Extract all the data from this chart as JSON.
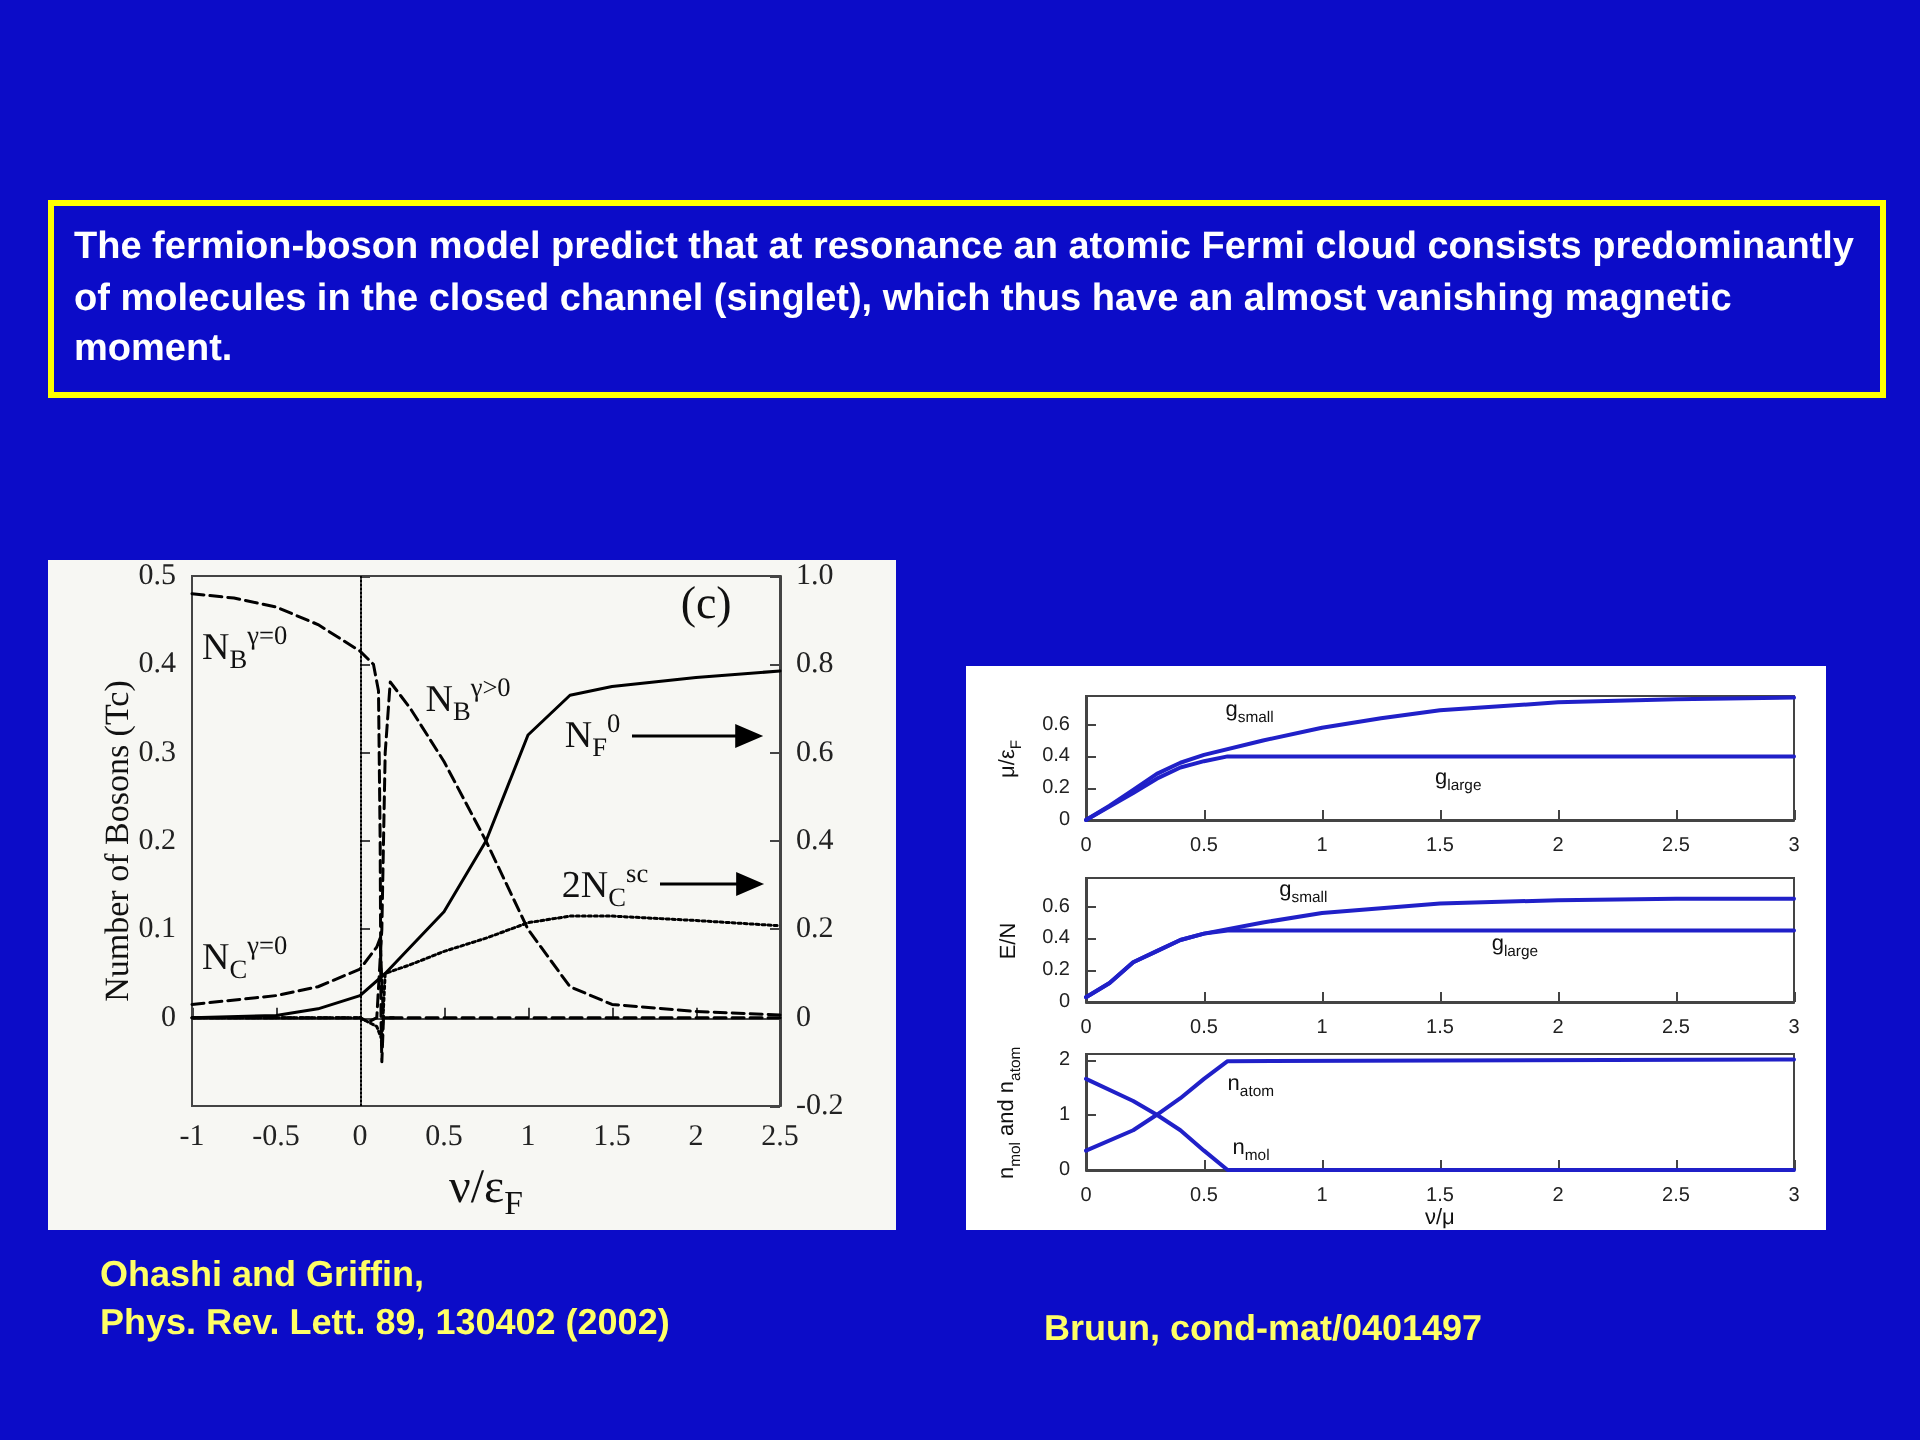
{
  "chart_data": [
    {
      "type": "other",
      "title": "The fermion-boson model predict that at resonance an atomic Fermi cloud consists predominantly of molecules in the closed channel (singlet), which thus have an almost vanishing magnetic moment."
    },
    {
      "type": "line",
      "legend": "right",
      "xlabel": "ν/ε$_{F}$",
      "ylabel": "Number of Bosons (Tc)",
      "xlim": [
        -1,
        2.5
      ],
      "xticks": [
        -1,
        -0.5,
        0,
        0.5,
        1,
        1.5,
        2,
        2.5
      ],
      "ylim": [
        -0.1,
        0.5
      ],
      "yticks": [
        0,
        0.1,
        0.2,
        0.3,
        0.4,
        0.5
      ],
      "y2lim": [
        -0.2,
        1
      ],
      "y2ticks": [
        -0.2,
        0,
        0.2,
        0.4,
        0.6,
        0.8,
        {
          "value": 1,
          "label": "1.0"
        }
      ],
      "ref_lines": [
        {
          "axis": "x",
          "value": 0,
          "color": "#000000",
          "line_style": "dotted"
        }
      ],
      "series": [
        {
          "name": "N$_{B}$$^{γ=0}$",
          "color": "#000000",
          "line_style": "dashed",
          "x": [
            -1,
            -0.75,
            -0.5,
            -0.25,
            0,
            0.08,
            0.11,
            0.12,
            0.125,
            0.13,
            0.14,
            0.2,
            1,
            2.5
          ],
          "values": [
            0.48,
            0.475,
            0.465,
            0.445,
            0.415,
            0.4,
            0.37,
            0.2,
            0,
            -0.05,
            0,
            0,
            0,
            0
          ]
        },
        {
          "name": "N$_{C}$$^{γ=0}$",
          "color": "#000000",
          "line_style": "dashed",
          "x": [
            -1,
            -0.5,
            -0.25,
            0,
            0.1,
            0.12,
            0.13,
            0.14,
            0.2
          ],
          "values": [
            0.015,
            0.025,
            0.035,
            0.055,
            0.08,
            0.09,
            0.04,
            0,
            0
          ]
        },
        {
          "name": "N$_{B}$$^{γ>0}$",
          "color": "#000000",
          "line_style": "dashed",
          "x": [
            -1,
            0,
            0.05,
            0.1,
            0.13,
            0.15,
            0.18,
            0.3,
            0.5,
            0.75,
            1,
            1.25,
            1.5,
            2,
            2.5
          ],
          "values": [
            0,
            0,
            -0.005,
            0,
            0.1,
            0.3,
            0.38,
            0.35,
            0.29,
            0.2,
            0.1,
            0.035,
            0.015,
            0.007,
            0.003
          ]
        },
        {
          "name": "N$_{F}$$^{0}$",
          "color": "#000000",
          "line_style": "solid",
          "axis": "y2",
          "x": [
            -1,
            -0.5,
            -0.25,
            0,
            0.15,
            0.3,
            0.5,
            0.75,
            1,
            1.25,
            1.5,
            2,
            2.5
          ],
          "values": [
            0,
            0.005,
            0.02,
            0.05,
            0.1,
            0.16,
            0.24,
            0.4,
            0.64,
            0.73,
            0.75,
            0.77,
            0.785
          ]
        },
        {
          "name": "2N$_{C}$$^{sc}$",
          "color": "#000000",
          "line_style": "dotted",
          "axis": "y2",
          "x": [
            -1,
            0,
            0.05,
            0.1,
            0.13,
            0.15,
            0.3,
            0.5,
            0.75,
            1,
            1.25,
            1.5,
            2,
            2.5
          ],
          "values": [
            0,
            0,
            -0.01,
            -0.02,
            -0.05,
            0.1,
            0.12,
            0.15,
            0.18,
            0.215,
            0.23,
            0.23,
            0.22,
            0.208
          ]
        }
      ],
      "annotations": [
        "(c)",
        "Ohashi and Griffin,\nPhys. Rev. Lett. 89, 130402 (2002)"
      ]
    },
    {
      "type": "line",
      "ylabel": "μ/ε$_{F}$",
      "xlim": [
        0,
        3
      ],
      "xticks": [
        0,
        0.5,
        1,
        1.5,
        2,
        2.5,
        3
      ],
      "ylim": [
        0,
        0.78
      ],
      "yticks": [
        0,
        0.2,
        0.4,
        0.6
      ],
      "series": [
        {
          "name": "g$_{small}$",
          "color": "#2020c8",
          "x": [
            0,
            0.1,
            0.2,
            0.3,
            0.4,
            0.5,
            0.75,
            1,
            1.25,
            1.5,
            2,
            2.5,
            3
          ],
          "values": [
            0,
            0.09,
            0.19,
            0.29,
            0.36,
            0.41,
            0.5,
            0.58,
            0.64,
            0.69,
            0.74,
            0.76,
            0.77
          ]
        },
        {
          "name": "g$_{large}$",
          "color": "#2020c8",
          "x": [
            0,
            0.2,
            0.3,
            0.4,
            0.5,
            0.6,
            3
          ],
          "values": [
            0,
            0.17,
            0.26,
            0.33,
            0.37,
            0.4,
            0.4
          ]
        }
      ]
    },
    {
      "type": "line",
      "ylabel": "E/N",
      "xlim": [
        0,
        3
      ],
      "xticks": [
        0,
        0.5,
        1,
        1.5,
        2,
        2.5,
        3
      ],
      "ylim": [
        0,
        0.78
      ],
      "yticks": [
        0,
        0.2,
        0.4,
        0.6
      ],
      "series": [
        {
          "name": "g$_{small}$",
          "color": "#2020c8",
          "x": [
            0,
            0.1,
            0.2,
            0.3,
            0.4,
            0.5,
            0.75,
            1,
            1.5,
            2,
            2.5,
            3
          ],
          "values": [
            0.03,
            0.12,
            0.25,
            0.32,
            0.39,
            0.43,
            0.5,
            0.56,
            0.62,
            0.64,
            0.65,
            0.65
          ]
        },
        {
          "name": "g$_{large}$",
          "color": "#2020c8",
          "x": [
            0,
            0.1,
            0.2,
            0.3,
            0.4,
            0.5,
            0.6,
            3
          ],
          "values": [
            0.03,
            0.12,
            0.25,
            0.32,
            0.39,
            0.43,
            0.45,
            0.45
          ]
        }
      ]
    },
    {
      "type": "line",
      "xlabel": "ν/μ",
      "ylabel": "n$_{mol}$ and n$_{atom}$",
      "xlim": [
        0,
        3
      ],
      "xticks": [
        0,
        0.5,
        1,
        1.5,
        2,
        2.5,
        3
      ],
      "ylim": [
        0,
        2.1
      ],
      "yticks": [
        0,
        1,
        2
      ],
      "series": [
        {
          "name": "n$_{atom}$",
          "color": "#2020c8",
          "x": [
            0,
            0.2,
            0.3,
            0.4,
            0.5,
            0.6,
            3
          ],
          "values": [
            0.35,
            0.72,
            1,
            1.3,
            1.65,
            1.97,
            2
          ]
        },
        {
          "name": "n$_{mol}$",
          "color": "#2020c8",
          "x": [
            0,
            0.2,
            0.3,
            0.4,
            0.5,
            0.6,
            3
          ],
          "values": [
            1.65,
            1.25,
            1,
            0.72,
            0.35,
            0,
            0
          ]
        }
      ],
      "annotations": [
        "Bruun, cond-mat/0401497"
      ]
    }
  ]
}
